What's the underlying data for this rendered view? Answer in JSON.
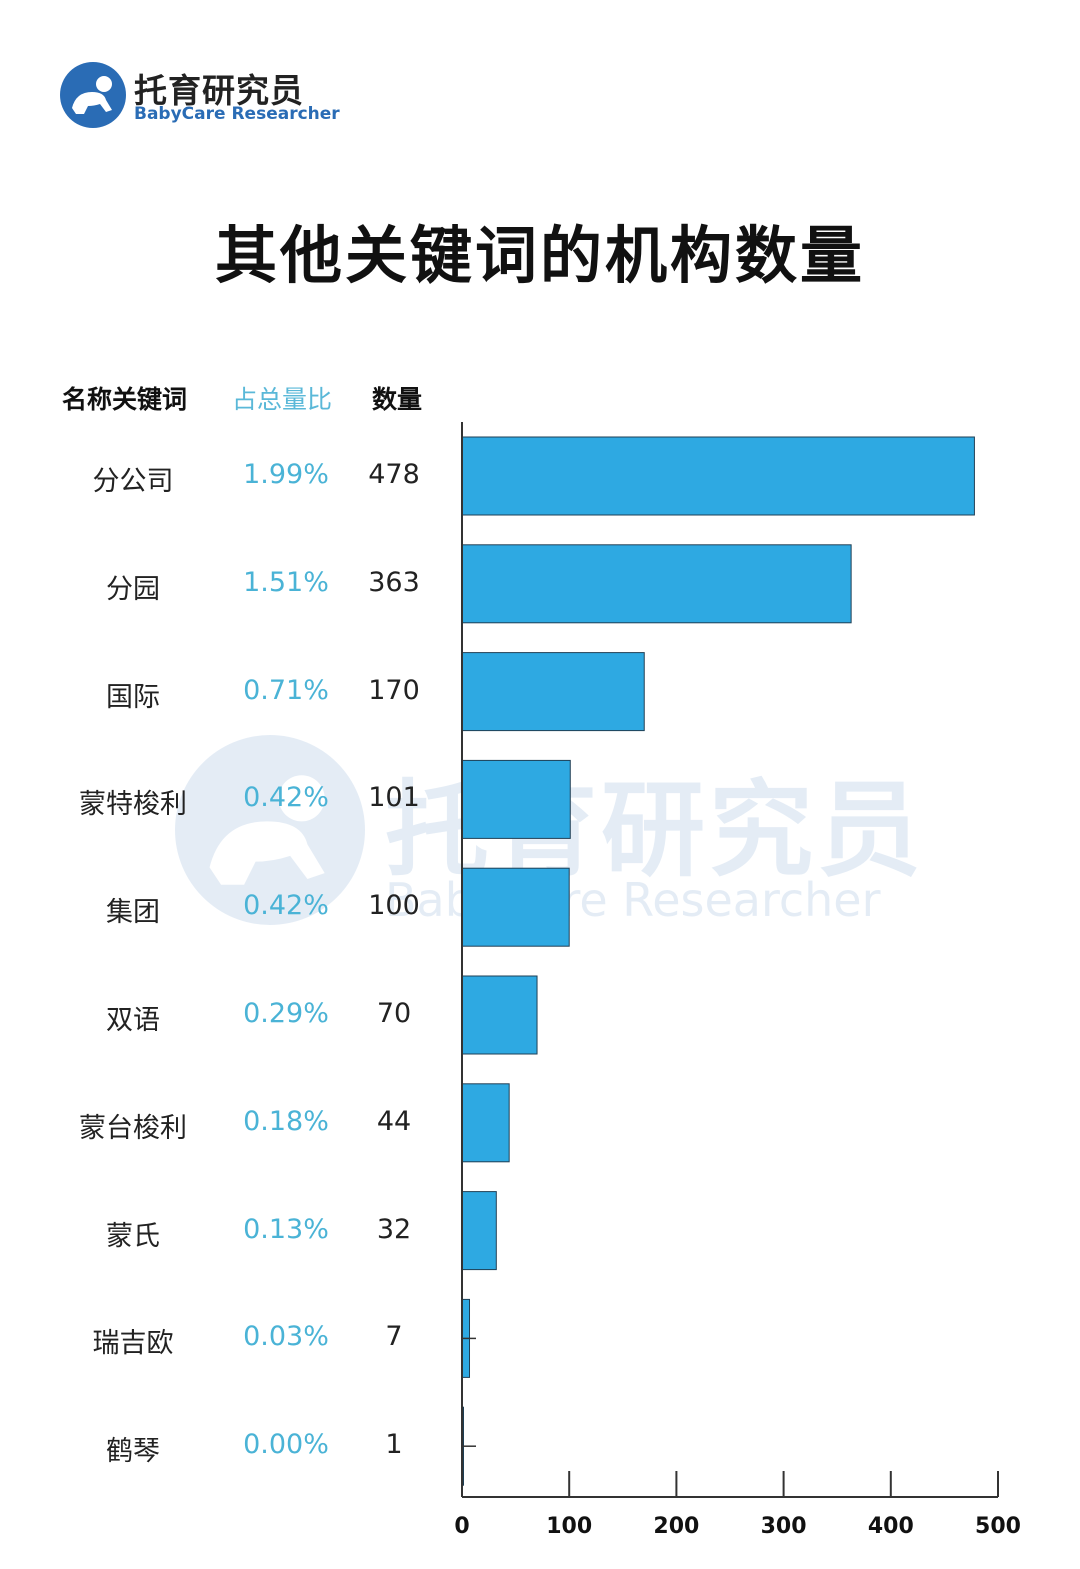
{
  "logo": {
    "name_cn": "托育研究员",
    "name_en": "BabyCare Researcher"
  },
  "headers": {
    "name": "名称关键词",
    "ratio": "占总量比",
    "count": "数量"
  },
  "colors": {
    "bar": "#2ea9e2",
    "ratio_text": "#4ab3d6",
    "brand": "#2a6cb5"
  },
  "chart_data": {
    "type": "bar",
    "orientation": "horizontal",
    "title": "其他关键词的机构数量",
    "categories": [
      "分公司",
      "分园",
      "国际",
      "蒙特梭利",
      "集团",
      "双语",
      "蒙台梭利",
      "蒙氏",
      "瑞吉欧",
      "鹤琴"
    ],
    "ratios": [
      "1.99%",
      "1.51%",
      "0.71%",
      "0.42%",
      "0.42%",
      "0.29%",
      "0.18%",
      "0.13%",
      "0.03%",
      "0.00%"
    ],
    "values": [
      478,
      363,
      170,
      101,
      100,
      70,
      44,
      32,
      7,
      1
    ],
    "xlim": [
      0,
      500
    ],
    "xticks": [
      0,
      100,
      200,
      300,
      400,
      500
    ],
    "grid": false
  }
}
